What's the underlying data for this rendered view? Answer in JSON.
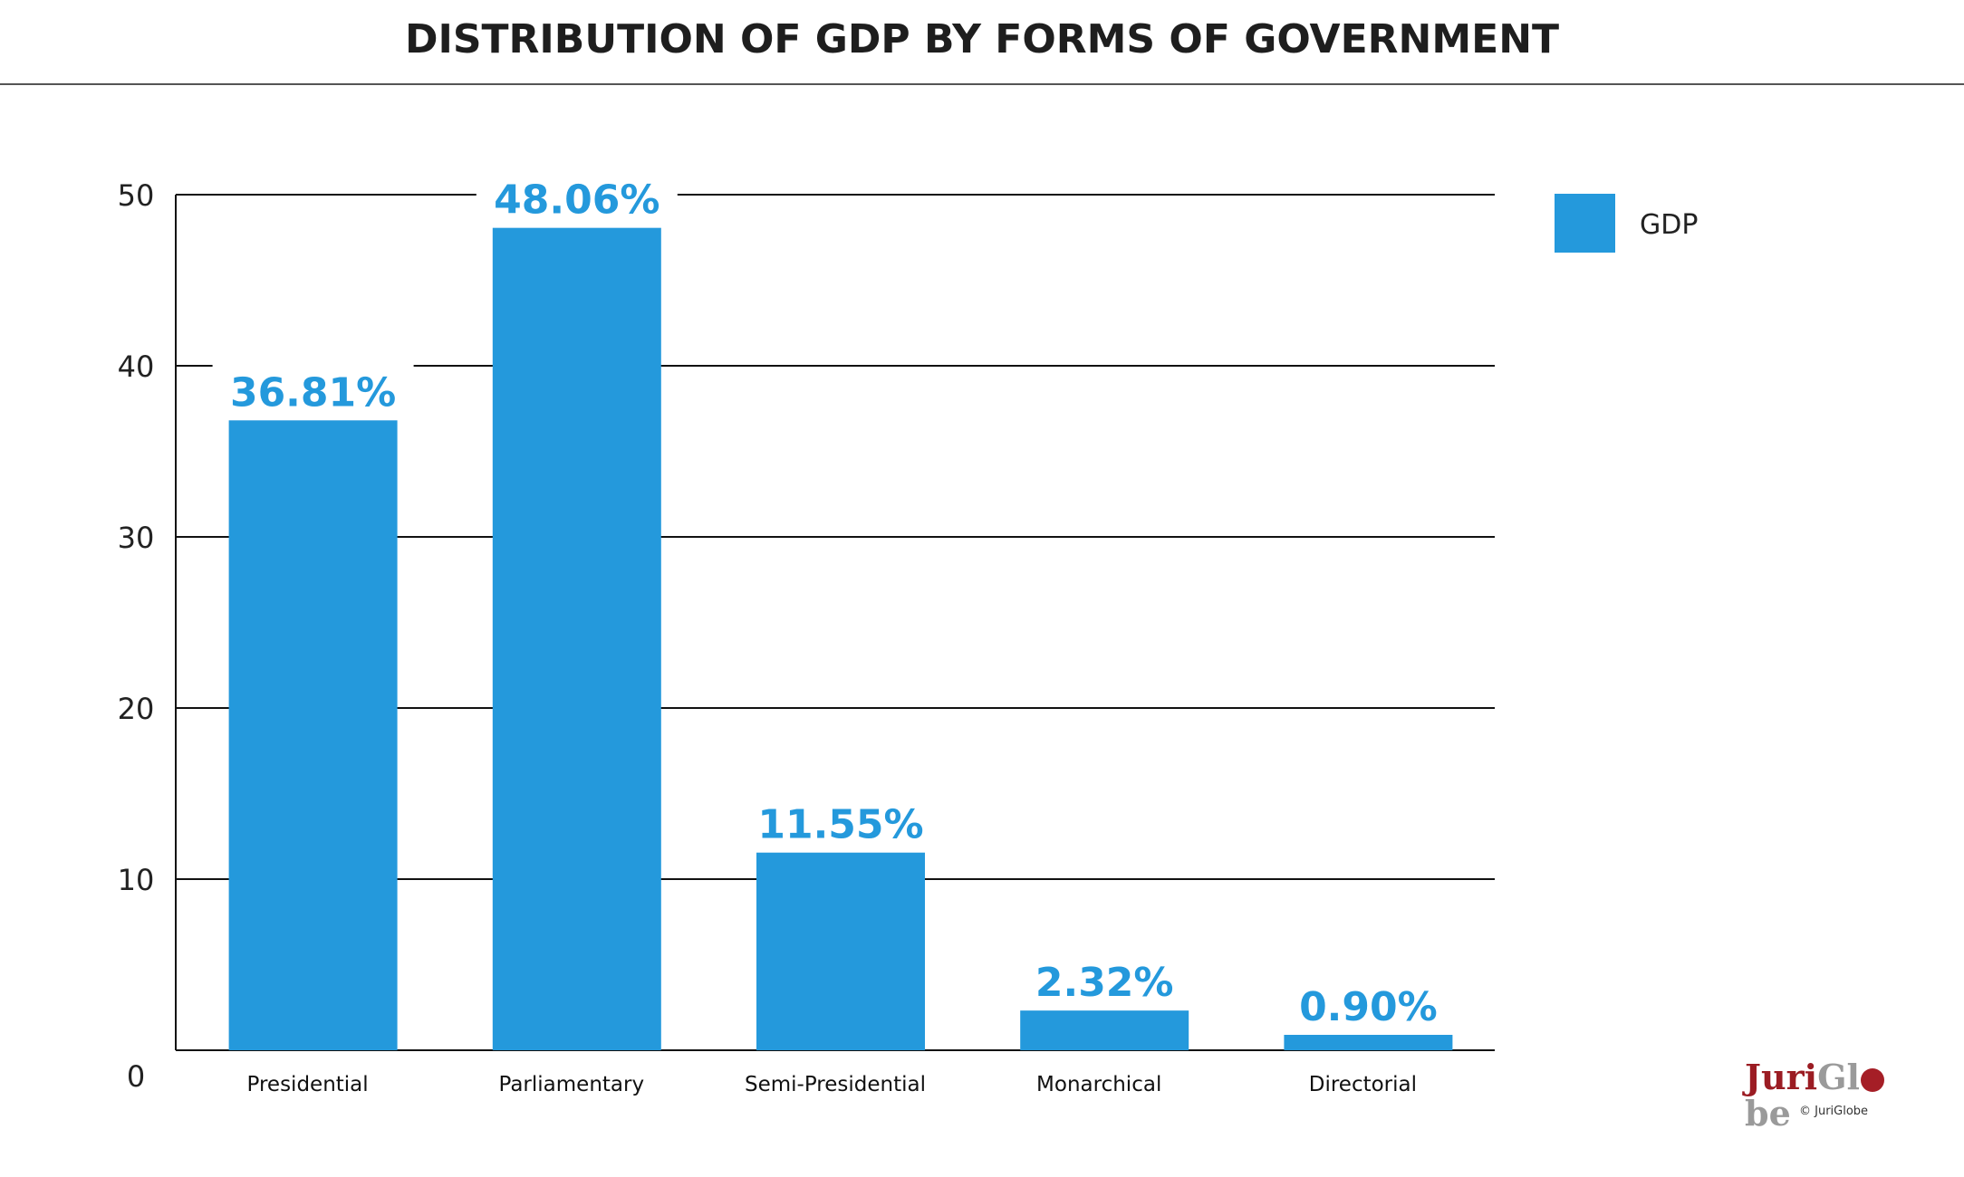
{
  "chart_data": {
    "type": "bar",
    "title": "DISTRIBUTION OF GDP BY FORMS OF GOVERNMENT",
    "categories": [
      "Presidential",
      "Parliamentary",
      "Semi-Presidential",
      "Monarchical",
      "Directorial"
    ],
    "series": [
      {
        "name": "GDP",
        "values": [
          36.81,
          48.06,
          11.55,
          2.32,
          0.9
        ],
        "labels": [
          "36.81%",
          "48.06%",
          "11.55%",
          "2.32%",
          "0.90%"
        ]
      }
    ],
    "ylim": [
      0,
      50
    ],
    "yticks": [
      0,
      10,
      20,
      30,
      40,
      50
    ],
    "xlabel": "",
    "ylabel": "",
    "grid": true,
    "legend_position": "top-right",
    "bar_color": "#2499dc",
    "label_color": "#2499dc"
  },
  "logo": {
    "part1": "Juri",
    "part2a": "Gl",
    "part2b": "be"
  },
  "copyright": "© JuriGlobe"
}
